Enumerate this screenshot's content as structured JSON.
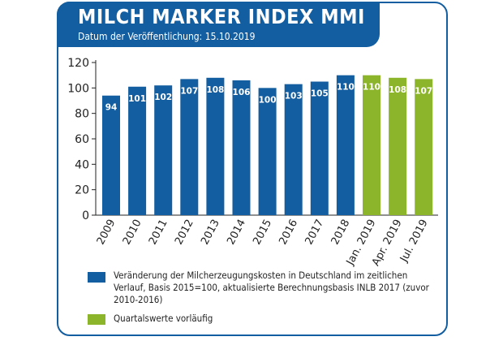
{
  "header": {
    "title": "MILCH MARKER INDEX MMI",
    "subtitle": "Datum der Veröffentlichung: 15.10.2019"
  },
  "colors": {
    "blue": "#135ea0",
    "green": "#8db52b"
  },
  "chart_data": {
    "type": "bar",
    "categories": [
      "2009",
      "2010",
      "2011",
      "2012",
      "2013",
      "2014",
      "2015",
      "2016",
      "2017",
      "2018",
      "Jan. 2019",
      "Apr. 2019",
      "Jul. 2019"
    ],
    "values": [
      94,
      101,
      102,
      107,
      108,
      106,
      100,
      103,
      105,
      110,
      110,
      108,
      107
    ],
    "series_type": [
      "blue",
      "blue",
      "blue",
      "blue",
      "blue",
      "blue",
      "blue",
      "blue",
      "blue",
      "blue",
      "green",
      "green",
      "green"
    ],
    "ylim": [
      0,
      120
    ],
    "yticks": [
      0,
      20,
      40,
      60,
      80,
      100,
      120
    ],
    "grid": false,
    "legend": [
      {
        "color": "blue",
        "label": "Veränderung der Milcherzeugungskosten in Deutschland im zeitlichen Verlauf, Basis 2015=100, aktualisierte Berechnungsbasis INLB 2017 (zuvor 2010-2016)"
      },
      {
        "color": "green",
        "label": "Quartalswerte vorläufig"
      }
    ],
    "legend_position": "bottom"
  }
}
